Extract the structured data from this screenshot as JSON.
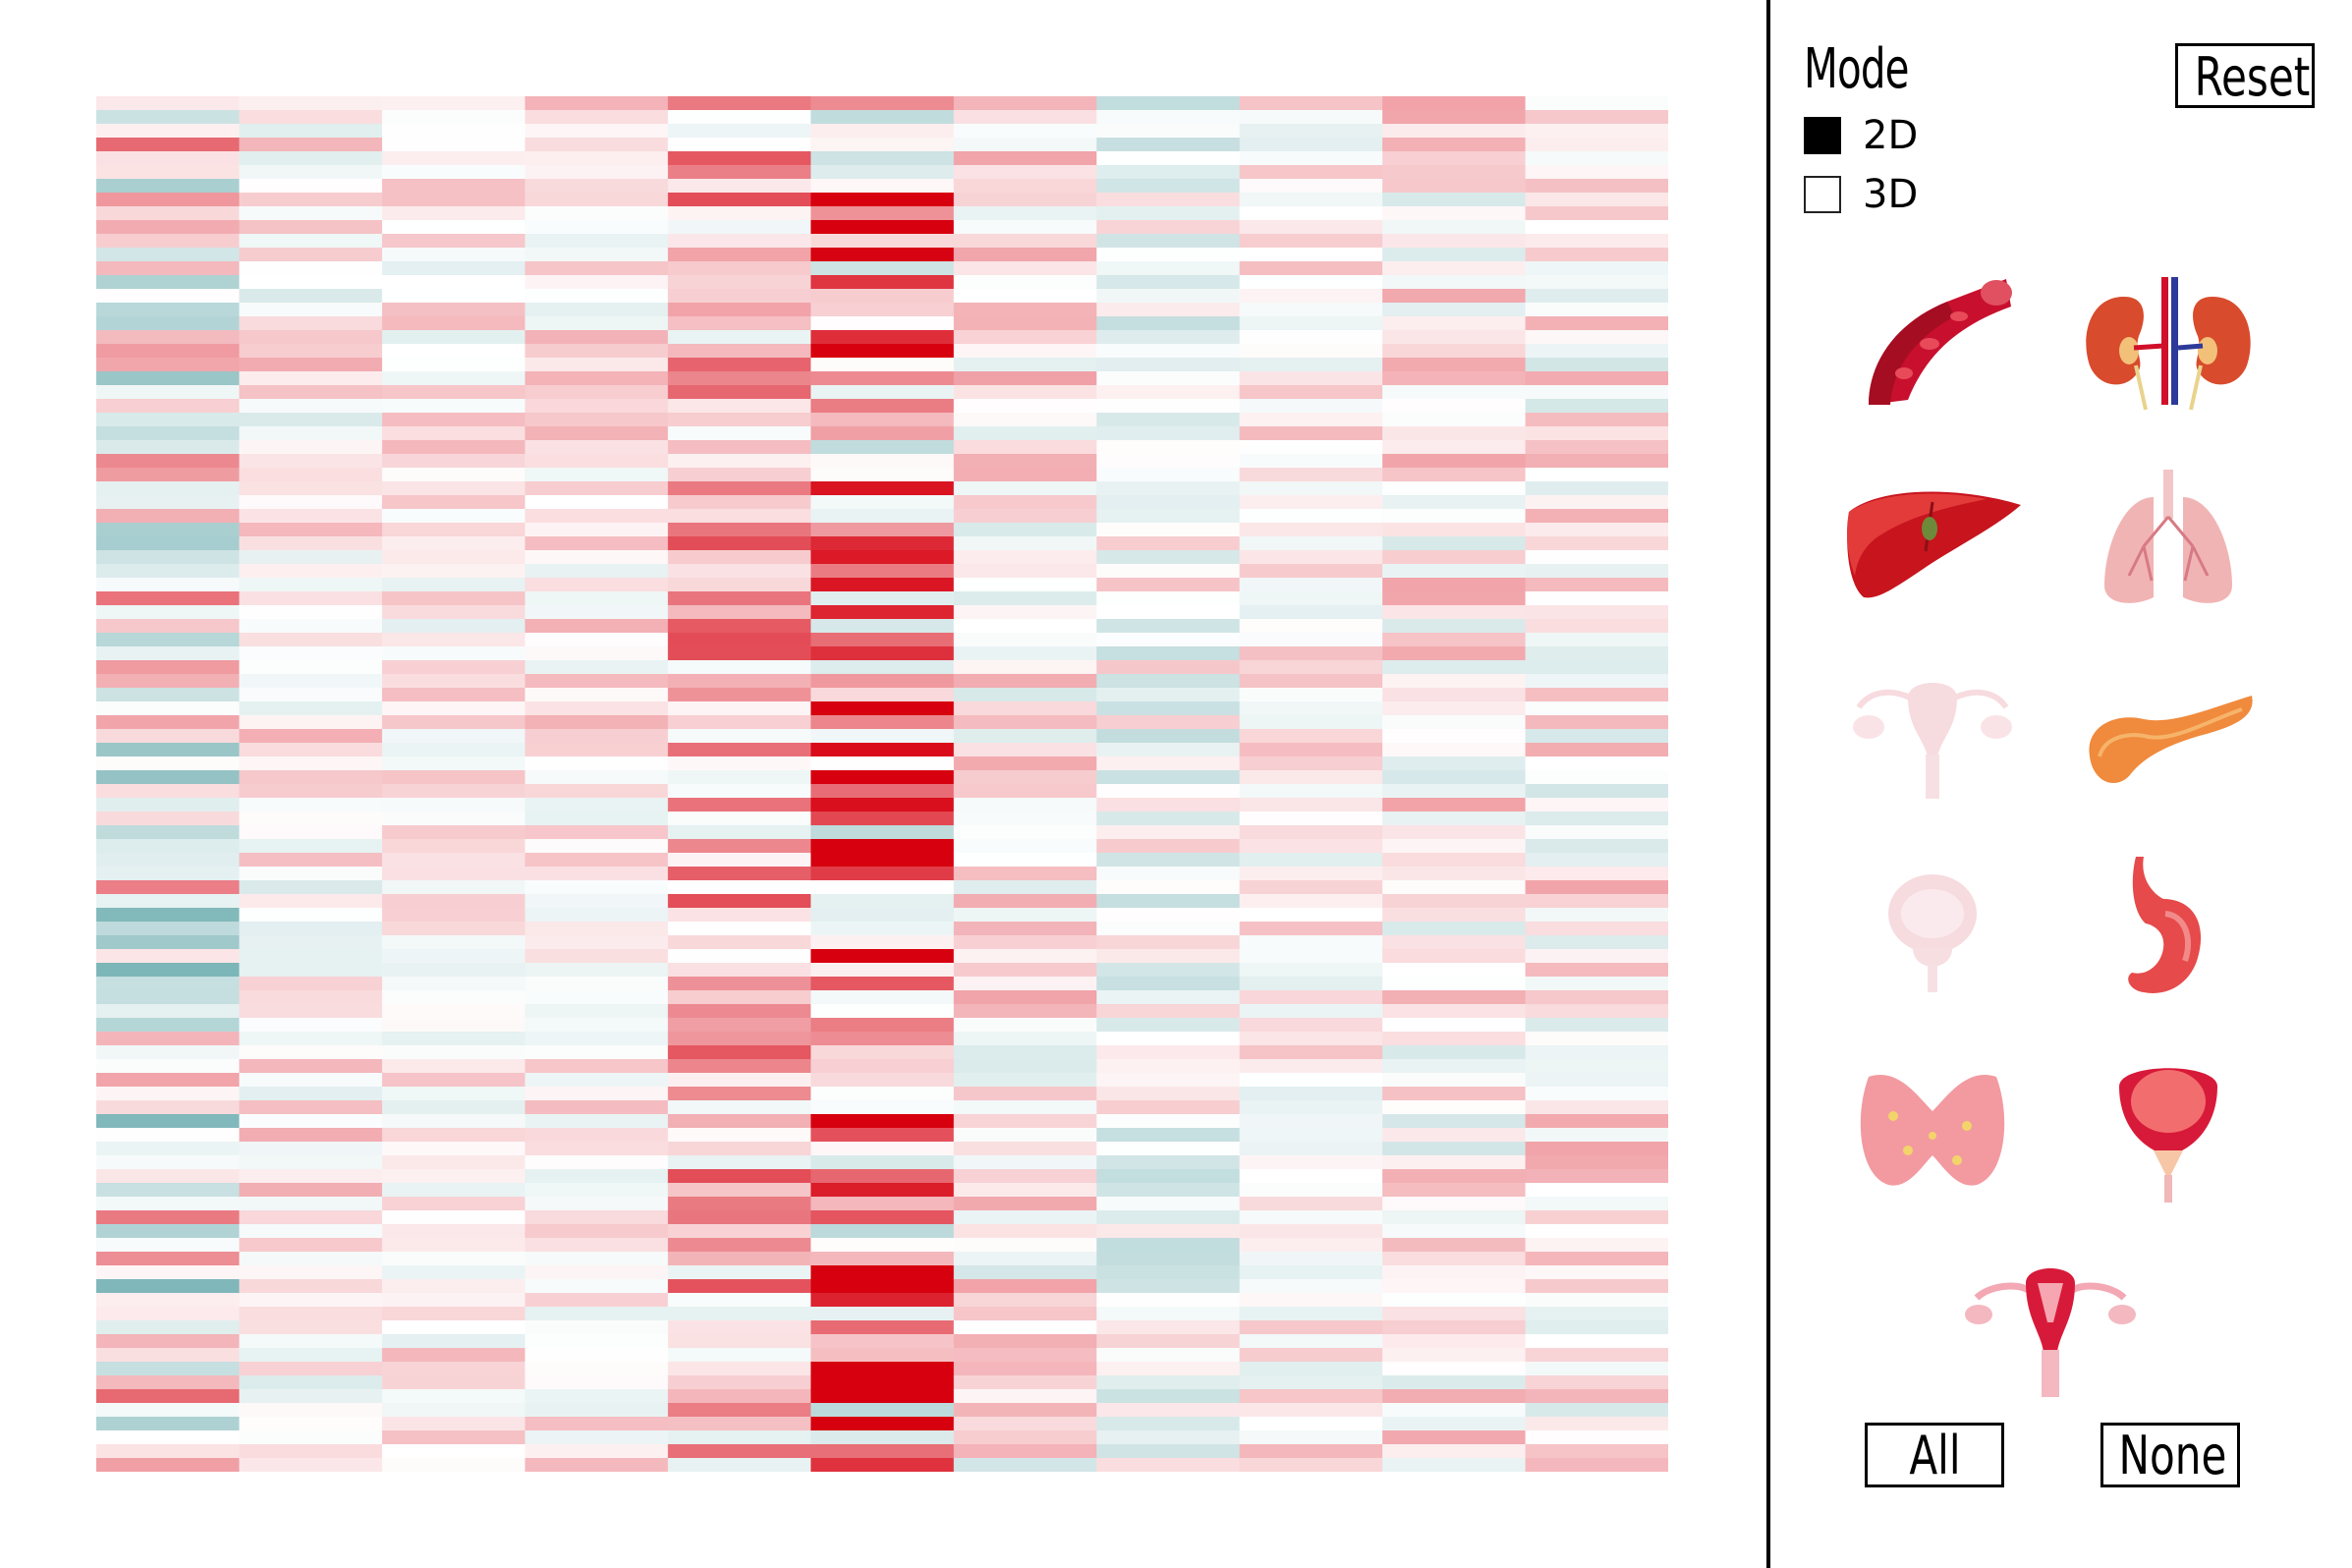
{
  "heatmap": {
    "rows": 100,
    "columns": 11,
    "colors": {
      "low": "#5fa5a8",
      "mid": "#ffffff",
      "high": "#d7000f"
    },
    "column_profiles": [
      {
        "column": 1,
        "bias": -0.1,
        "spread": 0.75
      },
      {
        "column": 2,
        "bias": 0.05,
        "spread": 0.35
      },
      {
        "column": 3,
        "bias": 0.05,
        "spread": 0.3
      },
      {
        "column": 4,
        "bias": 0.08,
        "spread": 0.3
      },
      {
        "column": 5,
        "bias": 0.28,
        "spread": 0.5
      },
      {
        "column": 6,
        "bias": 0.35,
        "spread": 0.85
      },
      {
        "column": 7,
        "bias": 0.05,
        "spread": 0.4
      },
      {
        "column": 8,
        "bias": -0.05,
        "spread": 0.4
      },
      {
        "column": 9,
        "bias": 0.05,
        "spread": 0.3
      },
      {
        "column": 10,
        "bias": 0.05,
        "spread": 0.4
      },
      {
        "column": 11,
        "bias": 0.05,
        "spread": 0.4
      }
    ]
  },
  "panel": {
    "mode_title": "Mode",
    "reset_label": "Reset",
    "mode_options": [
      {
        "label": "2D",
        "selected": true
      },
      {
        "label": "3D",
        "selected": false
      }
    ],
    "organs": [
      {
        "icon": "blood-vessel-icon",
        "active": true
      },
      {
        "icon": "kidney-icon",
        "active": true
      },
      {
        "icon": "liver-icon",
        "active": true
      },
      {
        "icon": "lung-icon",
        "active": true
      },
      {
        "icon": "ovary-icon",
        "active": false
      },
      {
        "icon": "pancreas-icon",
        "active": true
      },
      {
        "icon": "prostate-icon",
        "active": false
      },
      {
        "icon": "stomach-icon",
        "active": true
      },
      {
        "icon": "thyroid-icon",
        "active": true
      },
      {
        "icon": "bladder-icon",
        "active": true
      },
      {
        "icon": "uterus-icon",
        "active": true
      }
    ],
    "all_label": "All",
    "none_label": "None"
  }
}
